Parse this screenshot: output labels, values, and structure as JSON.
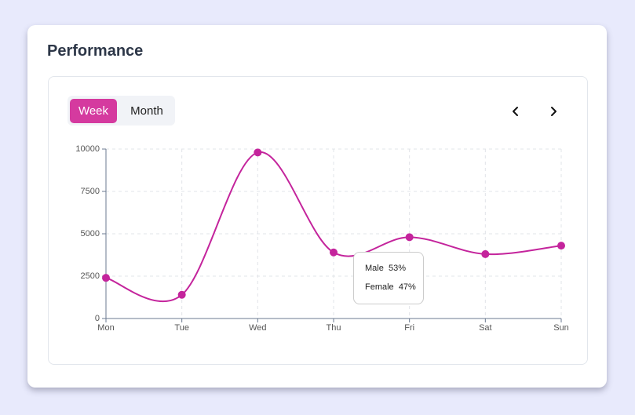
{
  "title": "Performance",
  "tabs": [
    "Week",
    "Month"
  ],
  "chart_data": {
    "type": "line",
    "categories": [
      "Mon",
      "Tue",
      "Wed",
      "Thu",
      "Fri",
      "Sat",
      "Sun"
    ],
    "values": [
      2400,
      1400,
      9800,
      3900,
      4800,
      3800,
      4300
    ],
    "color": "#c4249c",
    "ylim": [
      0,
      10000
    ],
    "yticks": [
      0,
      2500,
      5000,
      7500,
      10000
    ],
    "grid": true,
    "tooltip": [
      {
        "name": "Male",
        "value": "53%"
      },
      {
        "name": "Female",
        "value": "47%"
      }
    ]
  }
}
